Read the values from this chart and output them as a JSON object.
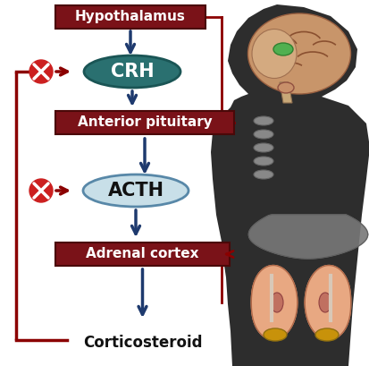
{
  "bg_color": "#ffffff",
  "dark_red": "#8b0000",
  "arrow_blue": "#1e3a6e",
  "crh_bg": "#2a7070",
  "acth_bg": "#c8dfe8",
  "box_red": "#7a1218",
  "body_dark": "#2d2d2d",
  "brain_skin": "#c8956a",
  "brain_dark": "#8b5530",
  "liver_gray": "#787878",
  "kidney_pink": "#e8a882",
  "adrenal_gold": "#c8920a",
  "labels": {
    "hypothalamus": "Hypothalamus",
    "crh": "CRH",
    "anterior": "Anterior pituitary",
    "acth": "ACTH",
    "adrenal": "Adrenal cortex",
    "corticosteroid": "Corticosteroid"
  },
  "figsize": [
    4.14,
    4.09
  ],
  "dpi": 100,
  "xlim": [
    0,
    414
  ],
  "ylim": [
    0,
    409
  ]
}
